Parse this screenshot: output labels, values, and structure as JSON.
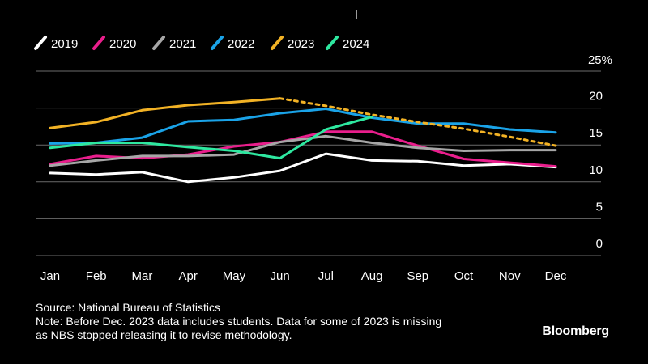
{
  "chart_data": {
    "type": "line",
    "title": "",
    "xlabel": "",
    "ylabel": "",
    "unit_label": "25%",
    "categories": [
      "Jan",
      "Feb",
      "Mar",
      "Apr",
      "May",
      "Jun",
      "Jul",
      "Aug",
      "Sep",
      "Oct",
      "Nov",
      "Dec"
    ],
    "ylim": [
      0,
      25
    ],
    "yticks": [
      "0",
      "5",
      "10",
      "15",
      "20"
    ],
    "grid": true,
    "legend_position": "top-left",
    "series": [
      {
        "name": "2019",
        "color": "#ffffff",
        "dashed_from_index": null,
        "values": [
          11.2,
          11.0,
          11.3,
          10.0,
          10.6,
          11.5,
          13.8,
          12.9,
          12.8,
          12.2,
          12.4,
          12.0
        ]
      },
      {
        "name": "2020",
        "color": "#e91e8c",
        "dashed_from_index": null,
        "values": [
          12.4,
          13.5,
          13.2,
          13.7,
          14.8,
          15.4,
          16.8,
          16.8,
          14.9,
          13.1,
          12.6,
          12.1
        ]
      },
      {
        "name": "2021",
        "color": "#a6a6a6",
        "dashed_from_index": null,
        "values": [
          12.2,
          12.9,
          13.5,
          13.5,
          13.7,
          15.4,
          16.2,
          15.3,
          14.6,
          14.2,
          14.3,
          14.3
        ]
      },
      {
        "name": "2022",
        "color": "#1aa3e8",
        "dashed_from_index": null,
        "values": [
          15.2,
          15.3,
          16.0,
          18.2,
          18.4,
          19.3,
          19.9,
          18.7,
          17.9,
          17.9,
          17.1,
          16.7
        ]
      },
      {
        "name": "2023",
        "color": "#f2b225",
        "dashed_from_index": 5,
        "values": [
          17.3,
          18.1,
          19.7,
          20.4,
          20.8,
          21.3,
          20.3,
          19.1,
          18.1,
          17.2,
          16.1,
          14.9
        ]
      },
      {
        "name": "2024",
        "color": "#2ee8a0",
        "dashed_from_index": null,
        "values": [
          14.6,
          15.3,
          15.3,
          14.7,
          14.2,
          13.2,
          17.1,
          18.8,
          null,
          null,
          null,
          null
        ]
      }
    ]
  },
  "footer": {
    "source": "Source: National Bureau of Statistics",
    "note_line1": "Note: Before Dec. 2023 data includes students. Data for some of 2023 is missing",
    "note_line2": "as NBS stopped releasing it to revise methodology.",
    "brand": "Bloomberg"
  }
}
